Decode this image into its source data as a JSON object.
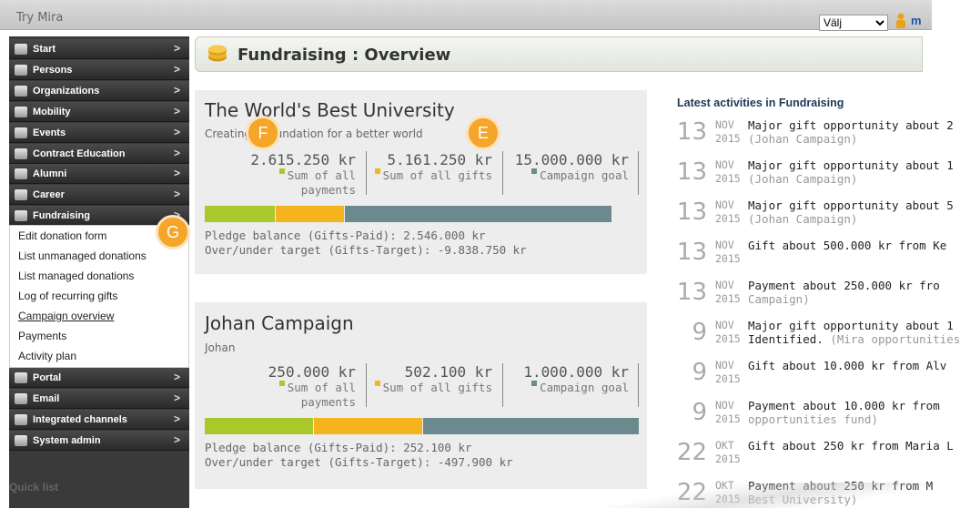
{
  "app": {
    "title": "Try Mira",
    "language_select": "Välj",
    "user_link": "m"
  },
  "sidebar": {
    "items": [
      {
        "label": "Start",
        "icon": "grid-icon"
      },
      {
        "label": "Persons",
        "icon": "person-icon"
      },
      {
        "label": "Organizations",
        "icon": "organization-icon"
      },
      {
        "label": "Mobility",
        "icon": "mobility-icon"
      },
      {
        "label": "Events",
        "icon": "events-icon"
      },
      {
        "label": "Contract Education",
        "icon": "contract-icon"
      },
      {
        "label": "Alumni",
        "icon": "alumni-icon"
      },
      {
        "label": "Career",
        "icon": "career-icon"
      },
      {
        "label": "Fundraising",
        "icon": "fundraising-icon"
      },
      {
        "label": "Portal",
        "icon": "portal-icon"
      },
      {
        "label": "Email",
        "icon": "email-icon"
      },
      {
        "label": "Integrated channels",
        "icon": "channels-icon"
      },
      {
        "label": "System admin",
        "icon": "gear-icon"
      }
    ],
    "chevron": ">",
    "fundraising_submenu": [
      "Edit donation form",
      "List unmanaged donations",
      "List managed donations",
      "Log of recurring gifts",
      "Campaign overview",
      "Payments",
      "Activity plan"
    ],
    "quick_list": "Quick list"
  },
  "page": {
    "title": "Fundraising : Overview"
  },
  "campaigns": [
    {
      "name": "The World's Best University",
      "subtitle": "Creating a foundation for a better world",
      "payments_amount": "2.615.250 kr",
      "payments_label_1": "Sum of all",
      "payments_label_2": "payments",
      "gifts_amount": "5.161.250 kr",
      "gifts_label": "Sum of all gifts",
      "goal_amount": "15.000.000 kr",
      "goal_label": "Campaign goal",
      "payments_value": 2615250,
      "gifts_value": 5161250,
      "goal_value": 15000000,
      "pledge_balance": "Pledge balance (Gifts-Paid): 2.546.000 kr",
      "over_under": "Over/under target (Gifts-Target): -9.838.750 kr"
    },
    {
      "name": "Johan Campaign",
      "subtitle": "Johan",
      "payments_amount": "250.000 kr",
      "payments_label_1": "Sum of all",
      "payments_label_2": "payments",
      "gifts_amount": "502.100 kr",
      "gifts_label": "Sum of all gifts",
      "goal_amount": "1.000.000 kr",
      "goal_label": "Campaign goal",
      "payments_value": 250000,
      "gifts_value": 502100,
      "goal_value": 1000000,
      "pledge_balance": "Pledge balance (Gifts-Paid): 252.100 kr",
      "over_under": "Over/under target (Gifts-Target): -497.900 kr"
    }
  ],
  "colors": {
    "payments": "#a8c82c",
    "gifts": "#f5b41e",
    "goal": "#6b8a8e"
  },
  "activities": {
    "title": "Latest activities in Fundraising",
    "items": [
      {
        "day": "13",
        "month": "NOV",
        "year": "2015",
        "text": "Major gift opportunity about 2",
        "sub": "(Johan Campaign)"
      },
      {
        "day": "13",
        "month": "NOV",
        "year": "2015",
        "text": "Major gift opportunity about 1",
        "sub": "(Johan Campaign)"
      },
      {
        "day": "13",
        "month": "NOV",
        "year": "2015",
        "text": "Major gift opportunity about 5",
        "sub": "(Johan Campaign)"
      },
      {
        "day": "13",
        "month": "NOV",
        "year": "2015",
        "text": "Gift about 500.000 kr from Ke",
        "sub": ""
      },
      {
        "day": "13",
        "month": "NOV",
        "year": "2015",
        "text": "Payment about 250.000 kr fro",
        "sub": "Campaign)"
      },
      {
        "day": "9",
        "month": "NOV",
        "year": "2015",
        "text": "Major gift opportunity about 1",
        "sub_bold": "Identified.",
        "sub": " (Mira opportunities"
      },
      {
        "day": "9",
        "month": "NOV",
        "year": "2015",
        "text": "Gift about 10.000 kr from Alv",
        "sub": ""
      },
      {
        "day": "9",
        "month": "NOV",
        "year": "2015",
        "text": "Payment about 10.000 kr from",
        "sub": "opportunities fund)"
      },
      {
        "day": "22",
        "month": "OKT",
        "year": "2015",
        "text": "Gift about 250 kr from Maria L",
        "sub": ""
      },
      {
        "day": "22",
        "month": "OKT",
        "year": "2015",
        "text": "Payment about 250 kr from M",
        "sub": "Best University)"
      }
    ]
  },
  "callouts": {
    "f": "F",
    "e": "E",
    "g": "G"
  }
}
